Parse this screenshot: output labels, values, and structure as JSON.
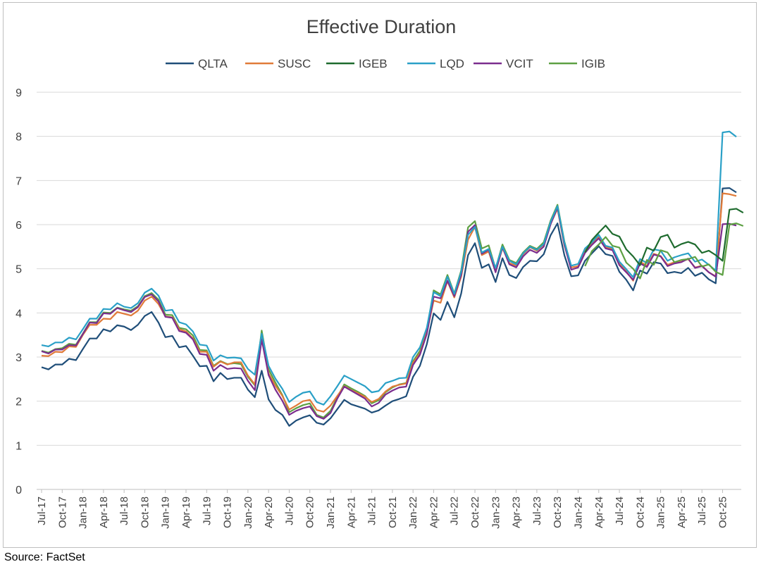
{
  "chart_data": {
    "type": "line",
    "title": "Effective Duration",
    "xlabel": "",
    "ylabel": "",
    "ylim": [
      0,
      9
    ],
    "yticks": [
      "0",
      "1",
      "2",
      "3",
      "4",
      "5",
      "6",
      "7",
      "8",
      "9"
    ],
    "grid": true,
    "legend_position": "top",
    "x_tick_labels": [
      "Jul-17",
      "Oct-17",
      "Jan-18",
      "Apr-18",
      "Jul-18",
      "Oct-18",
      "Jan-19",
      "Apr-19",
      "Jul-19",
      "Oct-19",
      "Jan-20",
      "Apr-20",
      "Jul-20",
      "Oct-20",
      "Jan-21",
      "Apr-21",
      "Jul-21",
      "Oct-21",
      "Jan-22",
      "Apr-22",
      "Jul-22",
      "Oct-22",
      "Jan-23",
      "Apr-23",
      "Jul-23",
      "Oct-23",
      "Jan-24",
      "Apr-24",
      "Jul-24",
      "Oct-24",
      "Jan-25",
      "Apr-25",
      "Jul-25",
      "Oct-25"
    ],
    "x_start": "Jul-17",
    "x_end": "Dec-25",
    "series": [
      {
        "name": "QLTA",
        "color": "#1f4e79",
        "values": [
          2.77,
          2.72,
          2.83,
          2.83,
          2.96,
          2.93,
          3.18,
          3.42,
          3.42,
          3.63,
          3.58,
          3.72,
          3.69,
          3.61,
          3.73,
          3.93,
          4.02,
          3.78,
          3.45,
          3.48,
          3.22,
          3.25,
          3.03,
          2.79,
          2.8,
          2.45,
          2.64,
          2.5,
          2.53,
          2.53,
          2.26,
          2.09,
          2.69,
          2.04,
          1.8,
          1.69,
          1.44,
          1.56,
          1.63,
          1.68,
          1.51,
          1.47,
          1.61,
          1.82,
          2.03,
          1.93,
          1.88,
          1.83,
          1.74,
          1.79,
          1.9,
          2.0,
          2.05,
          2.11,
          2.55,
          2.8,
          3.29,
          3.99,
          3.84,
          4.25,
          3.9,
          4.44,
          5.31,
          5.58,
          5.02,
          5.1,
          4.7,
          5.24,
          4.86,
          4.79,
          5.04,
          5.18,
          5.17,
          5.33,
          5.76,
          6.03,
          5.31,
          4.83,
          4.85,
          5.18,
          5.35,
          5.51,
          5.33,
          5.29,
          4.93,
          4.75,
          4.51,
          4.96,
          4.89,
          5.15,
          5.12,
          4.9,
          4.93,
          4.9,
          5.02,
          4.84,
          4.91,
          4.76,
          4.67,
          6.82,
          6.83,
          6.73
        ]
      },
      {
        "name": "SUSC",
        "color": "#e07b39",
        "values": [
          3.03,
          3.02,
          3.12,
          3.11,
          3.24,
          3.23,
          3.5,
          3.73,
          3.73,
          3.87,
          3.86,
          4.02,
          3.98,
          3.94,
          4.05,
          4.28,
          4.37,
          4.2,
          3.92,
          3.9,
          3.63,
          3.58,
          3.42,
          3.12,
          3.12,
          2.78,
          2.9,
          2.83,
          2.88,
          2.88,
          2.58,
          2.38,
          3.42,
          2.63,
          2.35,
          2.12,
          1.81,
          1.9,
          2.0,
          2.03,
          1.8,
          1.76,
          1.9,
          2.12,
          2.34,
          2.25,
          2.18,
          2.1,
          1.98,
          2.05,
          2.22,
          2.33,
          2.37,
          2.4,
          2.87,
          3.08,
          3.55,
          4.28,
          4.23,
          4.72,
          4.35,
          4.82,
          5.66,
          5.95,
          5.31,
          5.39,
          4.93,
          5.47,
          5.13,
          5.07,
          5.33,
          5.49,
          5.41,
          5.55,
          6.02,
          6.36,
          5.53,
          5.03,
          5.06,
          5.42,
          5.56,
          5.72,
          5.49,
          5.45,
          5.11,
          4.94,
          4.73,
          5.16,
          5.07,
          5.34,
          5.29,
          5.09,
          5.15,
          5.16,
          5.22,
          5.03,
          5.07,
          4.92,
          4.83,
          6.71,
          6.69,
          6.65
        ]
      },
      {
        "name": "IGEB",
        "color": "#1e6b2e",
        "values": [
          null,
          null,
          null,
          null,
          null,
          null,
          null,
          null,
          null,
          null,
          null,
          null,
          null,
          null,
          null,
          null,
          null,
          null,
          null,
          null,
          null,
          null,
          null,
          null,
          null,
          null,
          null,
          null,
          null,
          null,
          null,
          null,
          null,
          null,
          null,
          null,
          null,
          null,
          null,
          null,
          null,
          null,
          null,
          null,
          null,
          null,
          null,
          null,
          null,
          null,
          null,
          null,
          null,
          null,
          null,
          null,
          null,
          null,
          null,
          null,
          null,
          null,
          null,
          null,
          null,
          null,
          null,
          null,
          null,
          null,
          null,
          null,
          null,
          null,
          null,
          null,
          null,
          null,
          null,
          5.37,
          5.65,
          5.82,
          5.98,
          5.79,
          5.73,
          5.44,
          5.28,
          5.08,
          5.48,
          5.41,
          5.72,
          5.77,
          5.48,
          5.56,
          5.61,
          5.55,
          5.36,
          5.41,
          5.31,
          5.18,
          6.34,
          6.36,
          6.27
        ]
      },
      {
        "name": "LQD",
        "color": "#2aa0c7",
        "values": [
          3.27,
          3.24,
          3.33,
          3.33,
          3.44,
          3.4,
          3.63,
          3.87,
          3.87,
          4.09,
          4.08,
          4.22,
          4.14,
          4.11,
          4.22,
          4.46,
          4.55,
          4.39,
          4.05,
          4.07,
          3.79,
          3.74,
          3.58,
          3.28,
          3.26,
          2.92,
          3.04,
          2.98,
          2.99,
          2.97,
          2.73,
          2.6,
          3.53,
          2.8,
          2.51,
          2.28,
          1.98,
          2.1,
          2.19,
          2.22,
          1.98,
          1.92,
          2.11,
          2.34,
          2.58,
          2.5,
          2.42,
          2.34,
          2.2,
          2.23,
          2.41,
          2.46,
          2.52,
          2.53,
          3.0,
          3.22,
          3.66,
          4.47,
          4.38,
          4.82,
          4.43,
          4.93,
          5.77,
          5.95,
          5.37,
          5.45,
          5.02,
          5.5,
          5.18,
          5.1,
          5.35,
          5.5,
          5.43,
          5.56,
          6.06,
          6.42,
          5.6,
          5.07,
          5.11,
          5.46,
          5.6,
          5.77,
          5.52,
          5.48,
          5.16,
          4.99,
          4.81,
          5.22,
          5.13,
          5.44,
          5.41,
          5.18,
          5.26,
          5.31,
          5.35,
          5.16,
          5.21,
          5.09,
          4.96,
          8.09,
          8.11,
          7.99
        ]
      },
      {
        "name": "VCIT",
        "color": "#7b2d8e",
        "values": [
          3.13,
          3.08,
          3.17,
          3.17,
          3.27,
          3.26,
          3.52,
          3.78,
          3.77,
          3.99,
          3.98,
          4.11,
          4.06,
          4.02,
          4.13,
          4.36,
          4.42,
          4.26,
          3.91,
          3.89,
          3.59,
          3.55,
          3.4,
          3.07,
          3.05,
          2.69,
          2.82,
          2.73,
          2.75,
          2.74,
          2.46,
          2.25,
          3.4,
          2.59,
          2.26,
          2.01,
          1.69,
          1.78,
          1.84,
          1.88,
          1.66,
          1.6,
          1.73,
          2.06,
          2.33,
          2.24,
          2.15,
          2.06,
          1.88,
          1.96,
          2.15,
          2.24,
          2.31,
          2.33,
          2.82,
          3.05,
          3.52,
          4.37,
          4.33,
          4.73,
          4.38,
          4.86,
          5.84,
          5.99,
          5.34,
          5.43,
          4.92,
          5.49,
          5.1,
          5.03,
          5.28,
          5.43,
          5.36,
          5.5,
          6.01,
          6.39,
          5.55,
          4.98,
          5.03,
          5.36,
          5.54,
          5.69,
          5.46,
          5.42,
          5.08,
          4.92,
          4.75,
          5.12,
          5.04,
          5.32,
          5.28,
          5.06,
          5.12,
          5.15,
          5.23,
          5.02,
          5.06,
          4.92,
          4.82,
          6.01,
          6.02,
          5.98
        ]
      },
      {
        "name": "IGIB",
        "color": "#5da043",
        "values": [
          null,
          null,
          null,
          null,
          null,
          null,
          null,
          null,
          null,
          null,
          null,
          null,
          null,
          null,
          null,
          null,
          null,
          null,
          null,
          null,
          null,
          null,
          null,
          null,
          null,
          null,
          null,
          null,
          null,
          null,
          null,
          null,
          null,
          null,
          null,
          null,
          null,
          null,
          null,
          null,
          null,
          null,
          null,
          null,
          null,
          null,
          null,
          null,
          null,
          null,
          null,
          null,
          null,
          null,
          null,
          null,
          null,
          null,
          null,
          null,
          null,
          null,
          null,
          null,
          null,
          null,
          null,
          null,
          null,
          null,
          null,
          null,
          null,
          null,
          null,
          null,
          null,
          null,
          null,
          5.06,
          5.4,
          5.55,
          5.72,
          5.52,
          5.48,
          5.14,
          5.0,
          4.78,
          5.2,
          5.09,
          5.42,
          5.37,
          5.15,
          5.2,
          5.22,
          5.27,
          5.05,
          5.1,
          4.93,
          4.86,
          6.0,
          6.03,
          5.97
        ]
      }
    ],
    "igib_early_values": [
      3.14,
      3.1,
      3.18,
      3.2,
      3.3,
      3.28,
      3.53,
      3.79,
      3.79,
      4.01,
      4.0,
      4.12,
      4.08,
      4.05,
      4.15,
      4.38,
      4.45,
      4.3,
      3.96,
      3.95,
      3.66,
      3.63,
      3.49,
      3.16,
      3.15,
      2.8,
      2.91,
      2.84,
      2.86,
      2.84,
      2.55,
      2.36,
      3.6,
      2.72,
      2.42,
      2.14,
      1.75,
      1.84,
      1.91,
      1.95,
      1.69,
      1.63,
      1.78,
      2.09,
      2.38,
      2.29,
      2.21,
      2.12,
      1.95,
      2.02,
      2.2,
      2.31,
      2.38,
      2.41,
      2.9,
      3.14,
      3.61,
      4.51,
      4.42,
      4.86,
      4.44,
      4.96,
      5.94,
      6.08,
      5.46,
      5.53,
      5.0,
      5.55,
      5.2,
      5.13,
      5.37,
      5.52,
      5.45,
      5.6,
      6.09,
      6.45,
      5.62,
      5.05
    ]
  },
  "source": "Source: FactSet"
}
